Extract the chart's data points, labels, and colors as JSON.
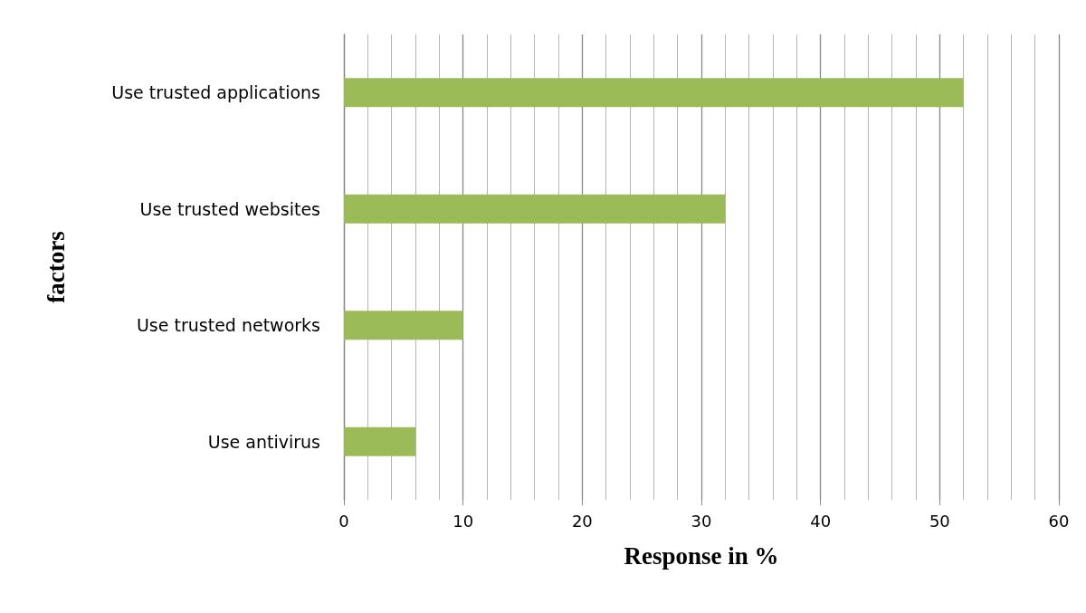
{
  "chart_data": {
    "type": "bar",
    "orientation": "horizontal",
    "categories": [
      "Use trusted applications",
      "Use trusted websites",
      "Use trusted networks",
      "Use antivirus"
    ],
    "values": [
      52,
      32,
      10,
      6
    ],
    "color": "#9bbb59",
    "xlabel": "Response in %",
    "ylabel": "factors",
    "xlim": [
      0,
      60
    ],
    "xticks": [
      0,
      10,
      20,
      30,
      40,
      50,
      60
    ],
    "grid": "x"
  }
}
